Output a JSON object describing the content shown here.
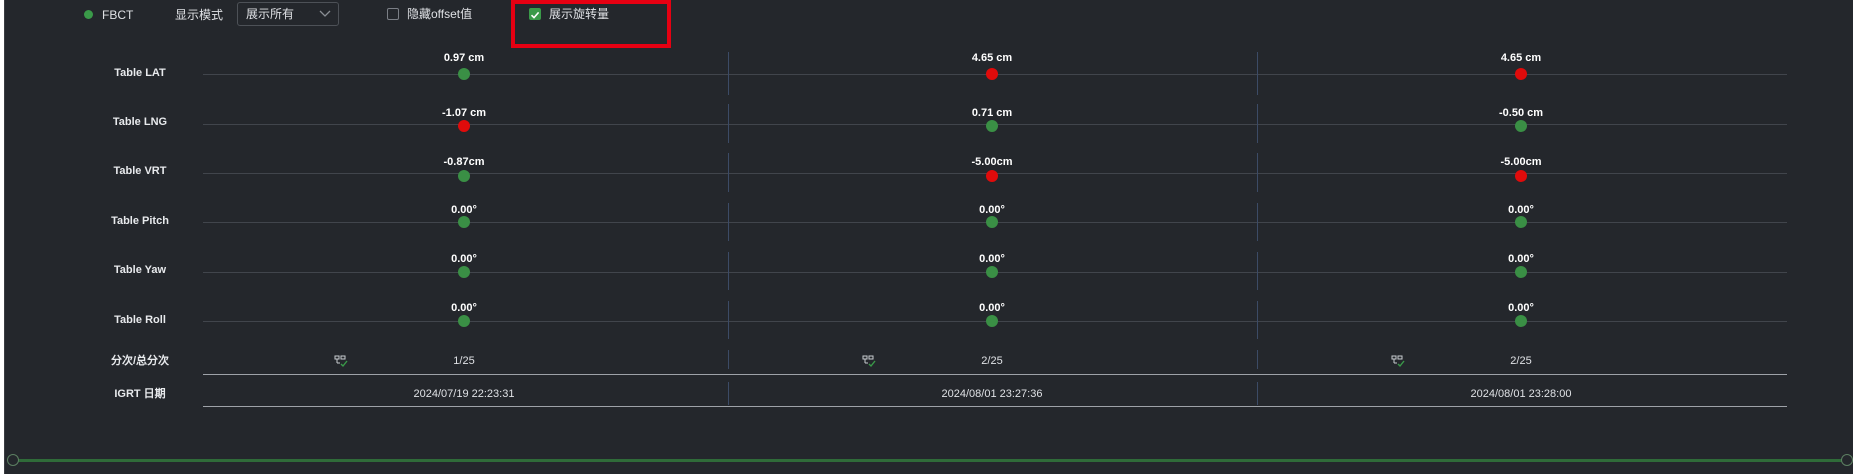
{
  "toolbar": {
    "mode_name": "FBCT",
    "display_mode_label": "显示模式",
    "display_mode_value": "展示所有",
    "hide_offset_label": "隐藏offset值",
    "hide_offset_checked": false,
    "show_rotation_label": "展示旋转量",
    "show_rotation_checked": true
  },
  "colors": {
    "in_tolerance": "#3a8f45",
    "out_of_tolerance": "#e00b0b",
    "highlight": "#e60012",
    "background": "#24272c"
  },
  "rows": {
    "lat": "Table LAT",
    "lng": "Table LNG",
    "vrt": "Table VRT",
    "pitch": "Table Pitch",
    "yaw": "Table Yaw",
    "roll": "Table Roll",
    "fraction": "分次/总分次",
    "date": "IGRT 日期"
  },
  "sessions": [
    {
      "lat": {
        "text": "0.97 cm",
        "status": "ok"
      },
      "lng": {
        "text": "-1.07 cm",
        "status": "bad"
      },
      "vrt": {
        "text": "-0.87cm",
        "status": "ok"
      },
      "pitch": {
        "text": "0.00°",
        "status": "ok"
      },
      "yaw": {
        "text": "0.00°",
        "status": "ok"
      },
      "roll": {
        "text": "0.00°",
        "status": "ok"
      },
      "fraction": "1/25",
      "date": "2024/07/19 22:23:31"
    },
    {
      "lat": {
        "text": "4.65 cm",
        "status": "bad"
      },
      "lng": {
        "text": "0.71 cm",
        "status": "ok"
      },
      "vrt": {
        "text": "-5.00cm",
        "status": "bad"
      },
      "pitch": {
        "text": "0.00°",
        "status": "ok"
      },
      "yaw": {
        "text": "0.00°",
        "status": "ok"
      },
      "roll": {
        "text": "0.00°",
        "status": "ok"
      },
      "fraction": "2/25",
      "date": "2024/08/01 23:27:36"
    },
    {
      "lat": {
        "text": "4.65 cm",
        "status": "bad"
      },
      "lng": {
        "text": "-0.50 cm",
        "status": "ok"
      },
      "vrt": {
        "text": "-5.00cm",
        "status": "bad"
      },
      "pitch": {
        "text": "0.00°",
        "status": "ok"
      },
      "yaw": {
        "text": "0.00°",
        "status": "ok"
      },
      "roll": {
        "text": "0.00°",
        "status": "ok"
      },
      "fraction": "2/25",
      "date": "2024/08/01 23:28:00"
    }
  ],
  "icons": {
    "status": "status-dot-icon",
    "dropdown": "chevron-down-icon",
    "fraction": "network-check-icon"
  }
}
